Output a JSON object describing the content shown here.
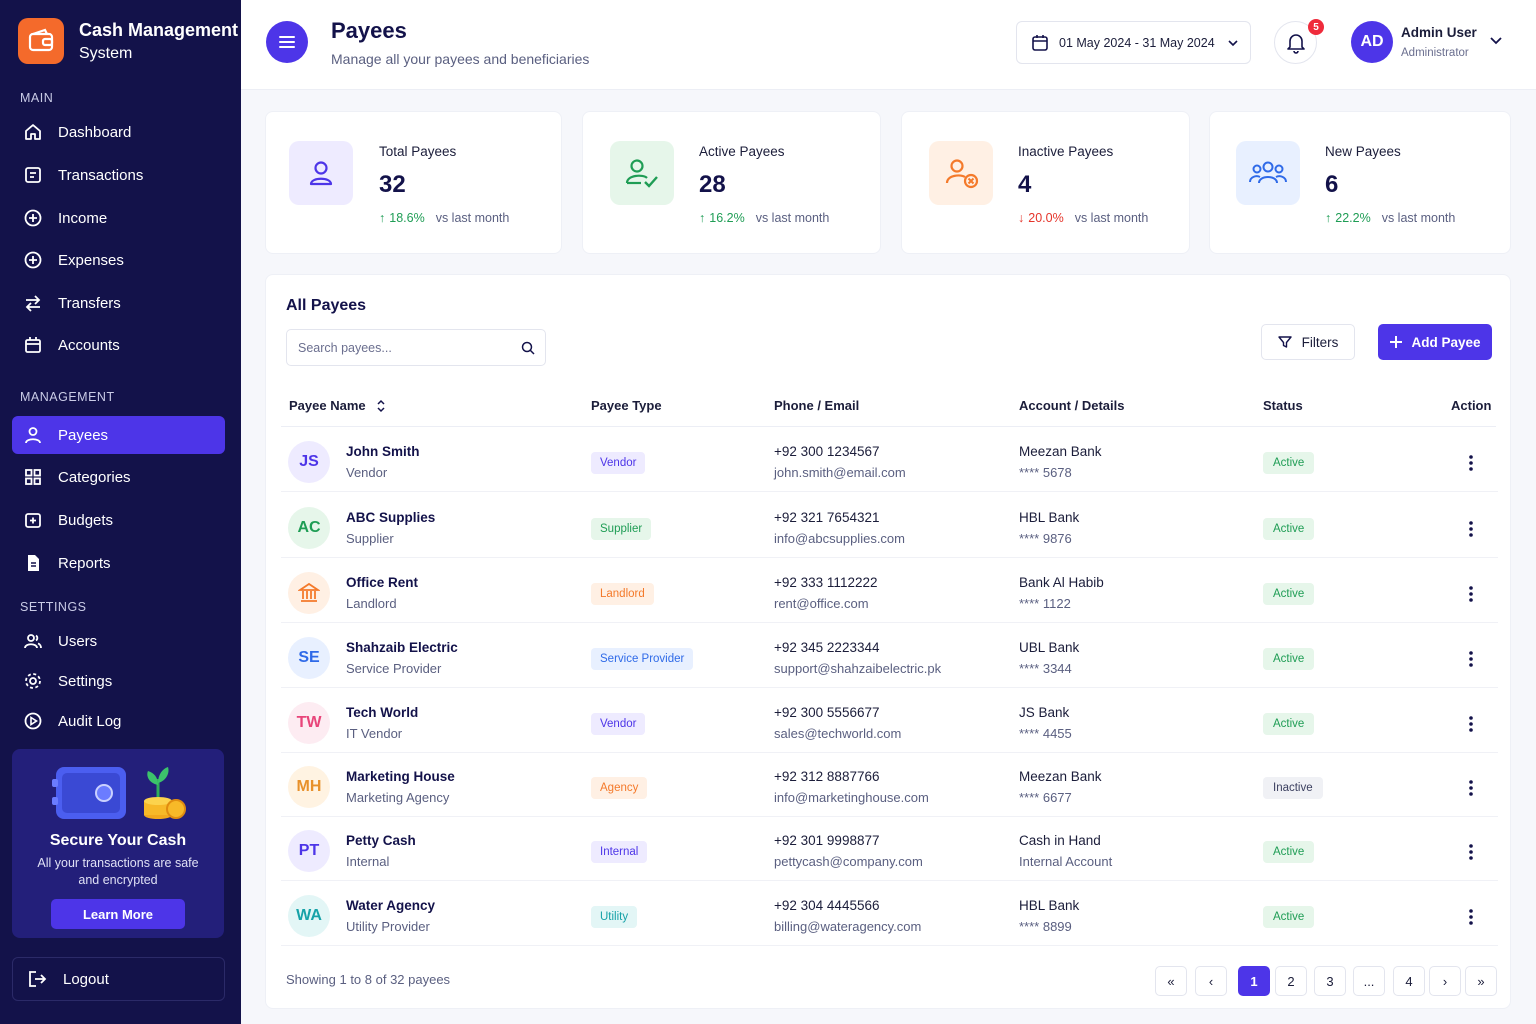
{
  "brand": {
    "title": "Cash Management",
    "subtitle": "System",
    "icon": "wallet-icon",
    "color": "#f46a2b"
  },
  "sidebar": {
    "sections": {
      "main": "MAIN",
      "management": "MANAGEMENT",
      "settings": "SETTINGS"
    },
    "main_items": [
      {
        "label": "Dashboard",
        "icon": "home-icon"
      },
      {
        "label": "Transactions",
        "icon": "receipt-icon"
      },
      {
        "label": "Income",
        "icon": "plus-circle-icon"
      },
      {
        "label": "Expenses",
        "icon": "plus-circle-icon"
      },
      {
        "label": "Transfers",
        "icon": "arrows-swap-icon"
      },
      {
        "label": "Accounts",
        "icon": "bank-icon"
      }
    ],
    "management_items": [
      {
        "label": "Payees",
        "icon": "user-icon",
        "active": true
      },
      {
        "label": "Categories",
        "icon": "grid-icon"
      },
      {
        "label": "Budgets",
        "icon": "wallet-plus-icon"
      },
      {
        "label": "Reports",
        "icon": "report-icon"
      }
    ],
    "settings_items": [
      {
        "label": "Users",
        "icon": "users-icon"
      },
      {
        "label": "Settings",
        "icon": "gear-icon"
      },
      {
        "label": "Audit Log",
        "icon": "play-circle-icon"
      }
    ],
    "promo": {
      "title": "Secure Your Cash",
      "text": "All your transactions are safe and encrypted",
      "button": "Learn More"
    },
    "logout": "Logout",
    "colors": {
      "background": "#13124a",
      "active": "#4d35e8"
    }
  },
  "header": {
    "title": "Payees",
    "subtitle": "Manage all your payees and beneficiaries",
    "date_range": "01 May 2024 - 31 May 2024",
    "notification_count": "5",
    "user": {
      "initials": "AD",
      "name": "Admin User",
      "role": "Administrator"
    }
  },
  "stats": [
    {
      "label": "Total Payees",
      "value": "32",
      "change": "18.6%",
      "direction": "up",
      "compare": "vs last month",
      "icon": "user-icon",
      "color": "#4d35e8",
      "bg": "#eeebff"
    },
    {
      "label": "Active Payees",
      "value": "28",
      "change": "16.2%",
      "direction": "up",
      "compare": "vs last month",
      "icon": "user-check-icon",
      "color": "#1f9d55",
      "bg": "#e6f6ea"
    },
    {
      "label": "Inactive Payees",
      "value": "4",
      "change": "20.0%",
      "direction": "down",
      "compare": "vs last month",
      "icon": "user-x-icon",
      "color": "#f47a2b",
      "bg": "#fff0e4"
    },
    {
      "label": "New Payees",
      "value": "6",
      "change": "22.2%",
      "direction": "up",
      "compare": "vs last month",
      "icon": "users-icon",
      "color": "#2f6ae8",
      "bg": "#e8f0ff"
    }
  ],
  "table": {
    "title": "All Payees",
    "search_placeholder": "Search payees...",
    "filters_label": "Filters",
    "add_label": "Add Payee",
    "columns": [
      "Payee Name",
      "Payee Type",
      "Phone / Email",
      "Account / Details",
      "Status",
      "Action"
    ],
    "rows": [
      {
        "initials": "JS",
        "name": "John Smith",
        "sub": "Vendor",
        "type": "Vendor",
        "phone": "+92 300 1234567",
        "email": "john.smith@email.com",
        "bank": "Meezan Bank",
        "account": "**** 5678",
        "status": "Active",
        "avatar_color": "#4d35e8",
        "avatar_bg": "#eeebff",
        "type_color": "#4d35e8",
        "type_bg": "#eeebff"
      },
      {
        "initials": "AC",
        "name": "ABC Supplies",
        "sub": "Supplier",
        "type": "Supplier",
        "phone": "+92 321 7654321",
        "email": "info@abcsupplies.com",
        "bank": "HBL Bank",
        "account": "**** 9876",
        "status": "Active",
        "avatar_color": "#1f9d55",
        "avatar_bg": "#e6f6ea",
        "type_color": "#1f9d55",
        "type_bg": "#e6f6ea"
      },
      {
        "initials": "",
        "icon": "building-icon",
        "name": "Office Rent",
        "sub": "Landlord",
        "type": "Landlord",
        "phone": "+92 333 1112222",
        "email": "rent@office.com",
        "bank": "Bank Al Habib",
        "account": "**** 1122",
        "status": "Active",
        "avatar_color": "#f47a2b",
        "avatar_bg": "#fff0e4",
        "type_color": "#f47a2b",
        "type_bg": "#fff0e4"
      },
      {
        "initials": "SE",
        "name": "Shahzaib Electric",
        "sub": "Service Provider",
        "type": "Service Provider",
        "phone": "+92 345 2223344",
        "email": "support@shahzaibelectric.pk",
        "bank": "UBL Bank",
        "account": "**** 3344",
        "status": "Active",
        "avatar_color": "#2f6ae8",
        "avatar_bg": "#e8f0ff",
        "type_color": "#2f6ae8",
        "type_bg": "#e8f0ff"
      },
      {
        "initials": "TW",
        "name": "Tech World",
        "sub": "IT Vendor",
        "type": "Vendor",
        "phone": "+92 300 5556677",
        "email": "sales@techworld.com",
        "bank": "JS Bank",
        "account": "**** 4455",
        "status": "Active",
        "avatar_color": "#e8457a",
        "avatar_bg": "#fdecf2",
        "type_color": "#4d35e8",
        "type_bg": "#eeebff"
      },
      {
        "initials": "MH",
        "name": "Marketing House",
        "sub": "Marketing Agency",
        "type": "Agency",
        "phone": "+92 312 8887766",
        "email": "info@marketinghouse.com",
        "bank": "Meezan Bank",
        "account": "**** 6677",
        "status": "Inactive",
        "avatar_color": "#e8912b",
        "avatar_bg": "#fff3e2",
        "type_color": "#f47a2b",
        "type_bg": "#fff0e4"
      },
      {
        "initials": "PT",
        "name": "Petty Cash",
        "sub": "Internal",
        "type": "Internal",
        "phone": "+92 301 9998877",
        "email": "pettycash@company.com",
        "bank": "Cash in Hand",
        "account": "Internal Account",
        "status": "Active",
        "avatar_color": "#4d35e8",
        "avatar_bg": "#eeebff",
        "type_color": "#4d35e8",
        "type_bg": "#eeebff"
      },
      {
        "initials": "WA",
        "name": "Water Agency",
        "sub": "Utility Provider",
        "type": "Utility",
        "phone": "+92 304 4445566",
        "email": "billing@wateragency.com",
        "bank": "HBL Bank",
        "account": "**** 8899",
        "status": "Active",
        "avatar_color": "#17a2a8",
        "avatar_bg": "#e3f6f6",
        "type_color": "#17a2a8",
        "type_bg": "#e3f6f6"
      }
    ],
    "showing": "Showing 1 to 8 of 32 payees",
    "pagination": [
      "«",
      "‹",
      "1",
      "2",
      "3",
      "...",
      "4",
      "›",
      "»"
    ],
    "current_page": "1"
  }
}
